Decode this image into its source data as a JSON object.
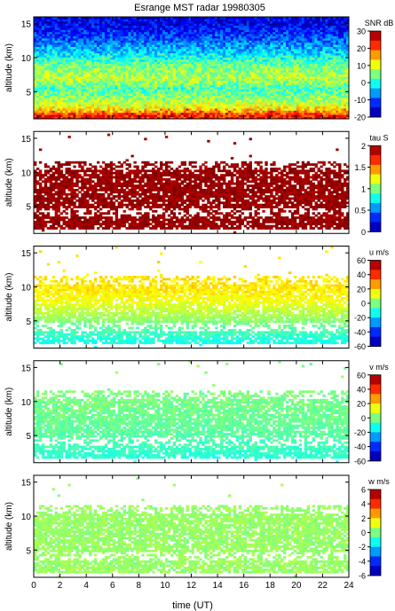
{
  "title": "Esrange MST radar 19980305",
  "xlabel": "time (UT)",
  "colors": {
    "jet": [
      "#00008f",
      "#0000ff",
      "#007fff",
      "#00ffff",
      "#7fff7f",
      "#ffff00",
      "#ff7f00",
      "#ff0000",
      "#7f0000"
    ]
  },
  "chart_data": [
    {
      "type": "heatmap",
      "ylabel": "altitude (km)",
      "quantity": "SNR",
      "colorbar_label": "SNR dB",
      "clim": [
        -20,
        30
      ],
      "colorbar_ticks": [
        30,
        20,
        10,
        0,
        -10,
        -20
      ],
      "xlim": [
        0,
        24
      ],
      "ylim": [
        1,
        16
      ],
      "x_ticks": [
        0,
        2,
        4,
        6,
        8,
        10,
        12,
        14,
        16,
        18,
        20,
        22,
        24
      ],
      "y_ticks": [
        5,
        10,
        15
      ],
      "profile": [
        {
          "alt": 1.5,
          "value": 22
        },
        {
          "alt": 2.5,
          "value": 12
        },
        {
          "alt": 4.0,
          "value": 6
        },
        {
          "alt": 5.5,
          "value": 2
        },
        {
          "alt": 7.0,
          "value": 8
        },
        {
          "alt": 9.0,
          "value": 4
        },
        {
          "alt": 11.0,
          "value": -4
        },
        {
          "alt": 13.0,
          "value": -10
        },
        {
          "alt": 15.0,
          "value": -15
        }
      ],
      "coverage": "full"
    },
    {
      "type": "heatmap",
      "ylabel": "altitude (km)",
      "quantity": "tau",
      "colorbar_label": "tau S",
      "clim": [
        0,
        2
      ],
      "colorbar_ticks": [
        2,
        1.5,
        1,
        0.5,
        0
      ],
      "xlim": [
        0,
        24
      ],
      "ylim": [
        1,
        16
      ],
      "x_ticks": [
        0,
        2,
        4,
        6,
        8,
        10,
        12,
        14,
        16,
        18,
        20,
        22,
        24
      ],
      "y_ticks": [
        5,
        10,
        15
      ],
      "typical_value": 1.95,
      "coverage_alt": [
        1.5,
        11.5
      ]
    },
    {
      "type": "heatmap",
      "ylabel": "altitude (km)",
      "quantity": "u",
      "colorbar_label": "u m/s",
      "clim": [
        -60,
        60
      ],
      "colorbar_ticks": [
        60,
        40,
        20,
        0,
        -20,
        -40,
        -60
      ],
      "xlim": [
        0,
        24
      ],
      "ylim": [
        1,
        16
      ],
      "x_ticks": [
        0,
        2,
        4,
        6,
        8,
        10,
        12,
        14,
        16,
        18,
        20,
        22,
        24
      ],
      "y_ticks": [
        5,
        10,
        15
      ],
      "profile": [
        {
          "alt": 2.0,
          "value": -12
        },
        {
          "alt": 4.0,
          "value": -4
        },
        {
          "alt": 6.0,
          "value": 6
        },
        {
          "alt": 8.0,
          "value": 14
        },
        {
          "alt": 10.0,
          "value": 18
        },
        {
          "alt": 11.5,
          "value": 18
        }
      ],
      "coverage_alt": [
        1.5,
        11.5
      ]
    },
    {
      "type": "heatmap",
      "ylabel": "altitude (km)",
      "quantity": "v",
      "colorbar_label": "v m/s",
      "clim": [
        -60,
        60
      ],
      "colorbar_ticks": [
        60,
        40,
        20,
        0,
        -20,
        -40,
        -60
      ],
      "xlim": [
        0,
        24
      ],
      "ylim": [
        1,
        16
      ],
      "x_ticks": [
        0,
        2,
        4,
        6,
        8,
        10,
        12,
        14,
        16,
        18,
        20,
        22,
        24
      ],
      "y_ticks": [
        5,
        10,
        15
      ],
      "profile": [
        {
          "alt": 2.0,
          "value": -10
        },
        {
          "alt": 5.0,
          "value": -4
        },
        {
          "alt": 8.0,
          "value": -2
        },
        {
          "alt": 11.5,
          "value": 0
        }
      ],
      "coverage_alt": [
        1.5,
        11.5
      ]
    },
    {
      "type": "heatmap",
      "ylabel": "altitude (km)",
      "quantity": "w",
      "colorbar_label": "w m/s",
      "clim": [
        -6,
        6
      ],
      "colorbar_ticks": [
        6,
        4,
        2,
        0,
        -2,
        -4,
        -6
      ],
      "xlim": [
        0,
        24
      ],
      "ylim": [
        1,
        16
      ],
      "x_ticks": [
        0,
        2,
        4,
        6,
        8,
        10,
        12,
        14,
        16,
        18,
        20,
        22,
        24
      ],
      "y_ticks": [
        5,
        10,
        15
      ],
      "typical_value": 0.3,
      "coverage_alt": [
        1.5,
        11.5
      ]
    }
  ]
}
